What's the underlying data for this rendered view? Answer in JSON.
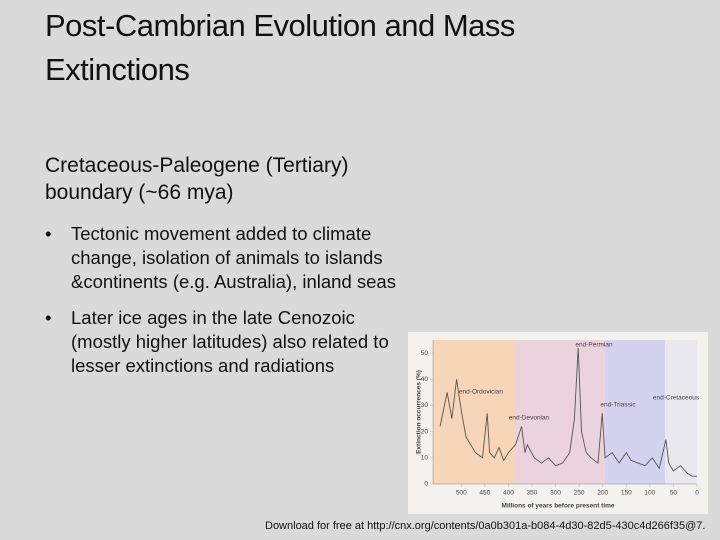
{
  "header": {
    "title": "Post-Cambrian Evolution and Mass Extinctions"
  },
  "body": {
    "subtitle": "Cretaceous-Paleogene (Tertiary) boundary (~66 mya)",
    "bullets": [
      "Tectonic movement added to climate change, isolation of animals to islands &continents (e.g. Australia), inland seas",
      "Later ice ages in the late Cenozoic (mostly higher latitudes) also related to lesser extinctions and radiations"
    ]
  },
  "footer": "Download for free at http://cnx.org/contents/0a0b301a-b084-4d30-82d5-430c4d266f35@7.",
  "chart_data": {
    "type": "line",
    "x_label": "Millions of years before present time",
    "y_label": "Extinction occurrences (%)",
    "annotations": [
      "end-Permian",
      "end-Ordovician",
      "end-Devonian",
      "end-Triassic",
      "end-Cretaceous"
    ],
    "xlim": [
      560,
      0
    ],
    "ylim": [
      0,
      55
    ],
    "xticks": [
      500,
      450,
      400,
      350,
      300,
      250,
      200,
      150,
      100,
      50,
      0
    ],
    "yticks": [
      0,
      10,
      20,
      30,
      40,
      50
    ],
    "series": [
      {
        "color": "#555555",
        "x": [
          545,
          530,
          520,
          510,
          500,
          490,
          480,
          470,
          455,
          445,
          440,
          430,
          420,
          410,
          400,
          385,
          372,
          365,
          360,
          345,
          330,
          315,
          300,
          285,
          270,
          260,
          252,
          245,
          235,
          225,
          210,
          201,
          195,
          180,
          165,
          150,
          140,
          125,
          110,
          95,
          80,
          66,
          60,
          50,
          35,
          20,
          10,
          0
        ],
        "values": [
          22,
          35,
          25,
          40,
          28,
          18,
          15,
          12,
          10,
          27,
          12,
          10,
          14,
          9,
          12,
          15,
          22,
          12,
          15,
          10,
          8,
          10,
          7,
          8,
          12,
          25,
          52,
          20,
          12,
          10,
          8,
          27,
          10,
          12,
          8,
          12,
          9,
          8,
          7,
          10,
          6,
          17,
          8,
          5,
          7,
          4,
          3,
          3
        ]
      }
    ]
  }
}
